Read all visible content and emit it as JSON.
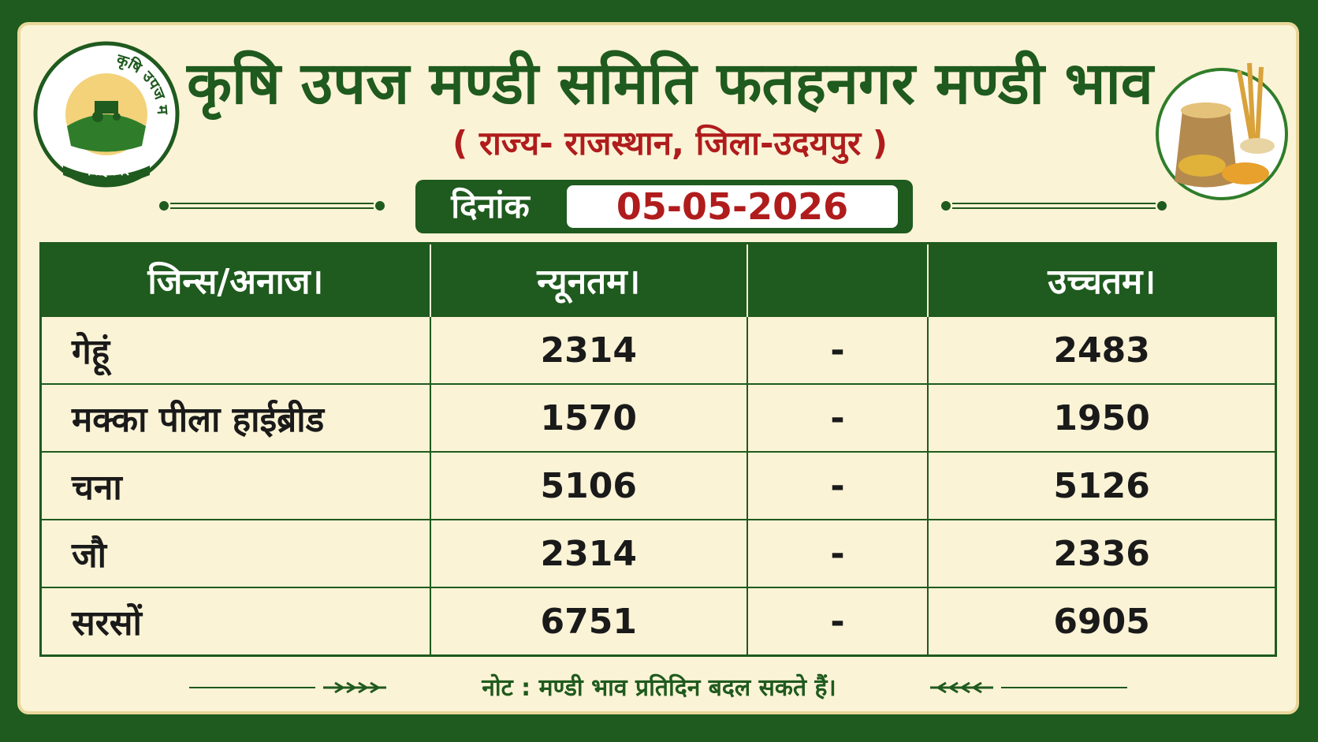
{
  "logo": {
    "arc_text": "कृषि उपज मण्डी समिति",
    "place": "फतहनगर"
  },
  "header": {
    "title": "कृषि उपज मण्डी समिति फतहनगर मण्डी भाव",
    "subtitle": "( राज्य- राजस्थान, जिला-उदयपुर )",
    "date_label": "दिनांक",
    "date": "05-05-2026"
  },
  "table": {
    "columns": [
      "जिन्स/अनाज।",
      "न्यूनतम।",
      "उच्चतम।"
    ],
    "rows": [
      [
        "गेहूं",
        2314,
        "-",
        2483
      ],
      [
        "मक्का पीला हाईब्रीड",
        1570,
        "-",
        1950
      ],
      [
        "चना",
        5106,
        "-",
        5126
      ],
      [
        "जौ",
        2314,
        "-",
        2336
      ],
      [
        "सरसों",
        6751,
        "-",
        6905
      ]
    ]
  },
  "note": "नोट : मण्डी भाव प्रतिदिन बदल सकते हैं।"
}
